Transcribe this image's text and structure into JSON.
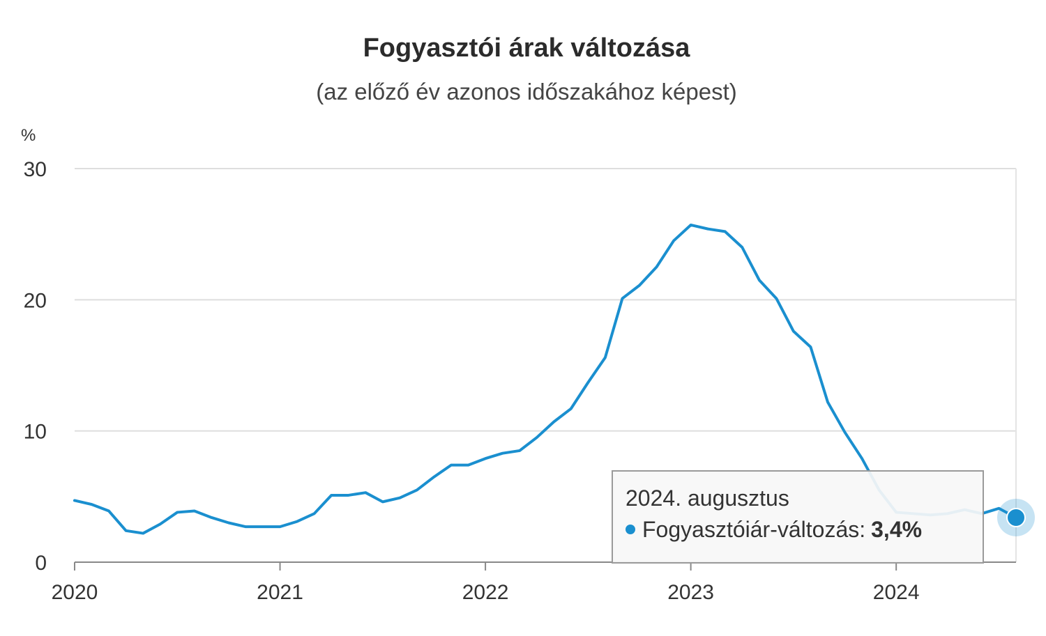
{
  "chart_data": {
    "type": "line",
    "title": "Fogyasztói árak változása",
    "subtitle": "(az előző év azonos időszakához képest)",
    "unit": "%",
    "ylim": [
      0,
      30
    ],
    "yticks": [
      "0",
      "10",
      "20",
      "30"
    ],
    "xticks": [
      "2020",
      "2021",
      "2022",
      "2023",
      "2024"
    ],
    "grid": true,
    "line_color": "#1a8fcf",
    "series": [
      {
        "name": "Fogyasztóiár-változás",
        "x": [
          "2020-01",
          "2020-02",
          "2020-03",
          "2020-04",
          "2020-05",
          "2020-06",
          "2020-07",
          "2020-08",
          "2020-09",
          "2020-10",
          "2020-11",
          "2020-12",
          "2021-01",
          "2021-02",
          "2021-03",
          "2021-04",
          "2021-05",
          "2021-06",
          "2021-07",
          "2021-08",
          "2021-09",
          "2021-10",
          "2021-11",
          "2021-12",
          "2022-01",
          "2022-02",
          "2022-03",
          "2022-04",
          "2022-05",
          "2022-06",
          "2022-07",
          "2022-08",
          "2022-09",
          "2022-10",
          "2022-11",
          "2022-12",
          "2023-01",
          "2023-02",
          "2023-03",
          "2023-04",
          "2023-05",
          "2023-06",
          "2023-07",
          "2023-08",
          "2023-09",
          "2023-10",
          "2023-11",
          "2023-12",
          "2024-01",
          "2024-02",
          "2024-03",
          "2024-04",
          "2024-05",
          "2024-06",
          "2024-07",
          "2024-08"
        ],
        "values": [
          4.7,
          4.4,
          3.9,
          2.4,
          2.2,
          2.9,
          3.8,
          3.9,
          3.4,
          3.0,
          2.7,
          2.7,
          2.7,
          3.1,
          3.7,
          5.1,
          5.1,
          5.3,
          4.6,
          4.9,
          5.5,
          6.5,
          7.4,
          7.4,
          7.9,
          8.3,
          8.5,
          9.5,
          10.7,
          11.7,
          13.7,
          15.6,
          20.1,
          21.1,
          22.5,
          24.5,
          25.7,
          25.4,
          25.2,
          24.0,
          21.5,
          20.1,
          17.6,
          16.4,
          12.2,
          9.9,
          7.9,
          5.5,
          3.8,
          3.7,
          3.6,
          3.7,
          4.0,
          3.7,
          4.1,
          3.4
        ]
      }
    ]
  },
  "tooltip": {
    "period": "2024. augusztus",
    "series_label": "Fogyasztóiár-változás:",
    "value": "3,4%"
  }
}
